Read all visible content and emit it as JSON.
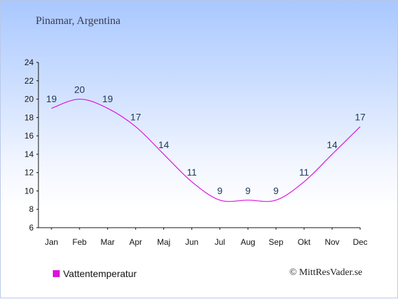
{
  "place_title": "Pinamar, Argentina",
  "copyright": "© MittResVader.se",
  "colors": {
    "series": "#dd11dd",
    "labels": "#1d3557",
    "axis": "#111111"
  },
  "chart_data": {
    "type": "line",
    "title": "",
    "xlabel": "",
    "ylabel": "",
    "categories": [
      "Jan",
      "Feb",
      "Mar",
      "Apr",
      "Maj",
      "Jun",
      "Jul",
      "Aug",
      "Sep",
      "Okt",
      "Nov",
      "Dec"
    ],
    "series": [
      {
        "name": "Vattentemperatur",
        "values": [
          19,
          20,
          19,
          17,
          14,
          11,
          9,
          9,
          9,
          11,
          14,
          17
        ]
      }
    ],
    "ylim": [
      6,
      24
    ],
    "yticks": [
      6,
      8,
      10,
      12,
      14,
      16,
      18,
      20,
      22,
      24
    ],
    "grid": false,
    "legend_position": "bottom-left"
  }
}
